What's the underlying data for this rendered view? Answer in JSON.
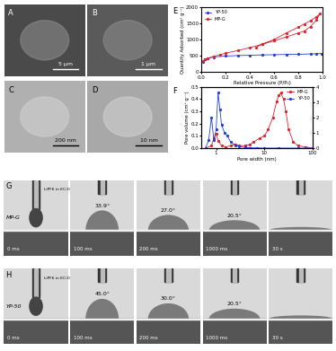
{
  "images": [
    {
      "label": "A",
      "scale_bar": "5 μm"
    },
    {
      "label": "B",
      "scale_bar": "1 μm"
    },
    {
      "label": "C",
      "scale_bar": "200 nm"
    },
    {
      "label": "D",
      "scale_bar": "10 nm"
    }
  ],
  "chart_data": [
    {
      "type": "line",
      "label": "E",
      "x_label": "Relative Pressure (P/P₀)",
      "y_label": "Quantity Adsorbed (cm³ g⁻¹)",
      "xlim": [
        0,
        1.0
      ],
      "xticks": [
        0.0,
        0.2,
        0.4,
        0.6,
        0.8,
        1.0
      ],
      "ylim": [
        0,
        2000
      ],
      "yticks": [
        0,
        500,
        1000,
        1500,
        2000
      ],
      "legend": "upper left",
      "marker": "o",
      "series": [
        {
          "name": "YP-50",
          "color": "#1f3fd6",
          "x": [
            0.01,
            0.03,
            0.05,
            0.1,
            0.2,
            0.3,
            0.4,
            0.5,
            0.6,
            0.7,
            0.8,
            0.9,
            0.95,
            0.99
          ],
          "values": [
            300,
            380,
            420,
            460,
            490,
            505,
            515,
            525,
            530,
            540,
            545,
            555,
            560,
            570
          ]
        },
        {
          "name": "MP-G",
          "color": "#e0202a",
          "x": [
            0.01,
            0.03,
            0.05,
            0.1,
            0.15,
            0.2,
            0.3,
            0.4,
            0.5,
            0.6,
            0.7,
            0.8,
            0.85,
            0.9,
            0.95,
            0.98,
            0.95,
            0.9,
            0.85,
            0.8,
            0.7,
            0.6,
            0.5,
            0.45
          ],
          "values": [
            330,
            380,
            420,
            480,
            530,
            580,
            660,
            750,
            850,
            960,
            1080,
            1200,
            1260,
            1400,
            1600,
            1800,
            1700,
            1580,
            1480,
            1380,
            1200,
            1000,
            860,
            760
          ]
        }
      ]
    },
    {
      "type": "line",
      "label": "F",
      "log": "x",
      "x_label": "Pore width (nm)",
      "y_label": "Pore volume (cm³ g⁻¹)",
      "xlim": [
        0.5,
        100
      ],
      "xticks": [
        1,
        10,
        100
      ],
      "ylim": [
        0,
        0.5
      ],
      "yticks": [
        0.0,
        0.1,
        0.2,
        0.3,
        0.4,
        0.5
      ],
      "y2lim": [
        0,
        4
      ],
      "y2ticks": [
        0,
        1,
        2,
        3,
        4
      ],
      "legend": "upper right",
      "marker": "o",
      "series": [
        {
          "name": "MP-G",
          "color": "#e0202a",
          "x": [
            0.6,
            0.8,
            0.9,
            1.0,
            1.1,
            1.3,
            1.6,
            2,
            2.5,
            3,
            4,
            5,
            6,
            8,
            10,
            12,
            15,
            18,
            20,
            22,
            25,
            28,
            32,
            40,
            50,
            70,
            100
          ],
          "values": [
            0,
            0.02,
            0.08,
            0.12,
            0.06,
            0.02,
            0.01,
            0.02,
            0.03,
            0.02,
            0.02,
            0.03,
            0.05,
            0.08,
            0.1,
            0.15,
            0.25,
            0.38,
            0.43,
            0.45,
            0.4,
            0.3,
            0.15,
            0.05,
            0.02,
            0.01,
            0
          ]
        },
        {
          "name": "YP-50",
          "color": "#1f3fd6",
          "axis": "y2",
          "x": [
            0.6,
            0.7,
            0.8,
            0.9,
            1.0,
            1.1,
            1.2,
            1.3,
            1.5,
            1.7,
            2,
            2.5,
            3,
            4,
            5,
            7,
            10,
            20,
            50,
            100
          ],
          "values": [
            0,
            0.5,
            2.0,
            0.5,
            1.2,
            3.6,
            2.5,
            1.5,
            1.0,
            0.8,
            0.4,
            0.2,
            0.1,
            0.05,
            0.02,
            0.01,
            0,
            0,
            0,
            0
          ]
        }
      ]
    }
  ],
  "contact_angle": {
    "electrolyte": "LiPF6 in EC:DMC",
    "rows": [
      {
        "label": "G",
        "sample": "MP-G",
        "frames": [
          {
            "time": "0 ms"
          },
          {
            "time": "100 ms",
            "angle": "33.9°"
          },
          {
            "time": "200 ms",
            "angle": "27.0°"
          },
          {
            "time": "1000 ms",
            "angle": "20.5°"
          },
          {
            "time": "30 s"
          }
        ]
      },
      {
        "label": "H",
        "sample": "YP-50",
        "frames": [
          {
            "time": "0 ms"
          },
          {
            "time": "100 ms",
            "angle": "45.0°"
          },
          {
            "time": "200 ms",
            "angle": "30.0°"
          },
          {
            "time": "1000 ms",
            "angle": "20.5°"
          },
          {
            "time": "30 s"
          }
        ]
      }
    ]
  }
}
